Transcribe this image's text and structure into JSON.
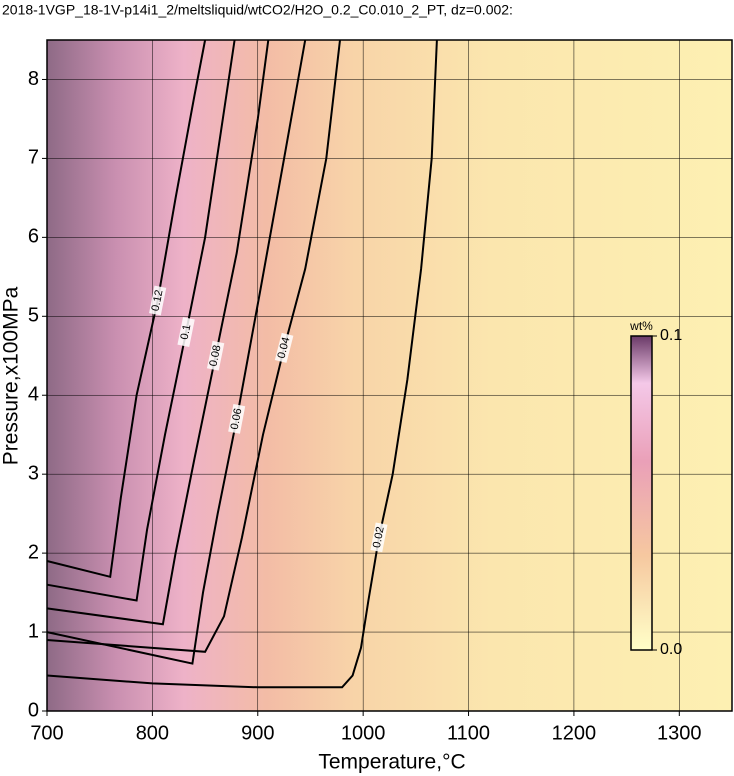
{
  "chart_data": {
    "type": "contour",
    "title": "2018-1VGP_18-1V-p14i1_2/meltsliquid/wtCO2/H2O_0.2_C0.010_2_PT, dz=0.002:",
    "x_label": "Temperature,°C",
    "y_label": "Pressure,x100MPa",
    "xlim": [
      700,
      1350
    ],
    "ylim": [
      0,
      8.5
    ],
    "xticks": [
      700,
      800,
      900,
      1000,
      1100,
      1200,
      1300
    ],
    "yticks": [
      0,
      1,
      2,
      3,
      4,
      5,
      6,
      7,
      8
    ],
    "grid": true,
    "line_color": "#000000",
    "contours": [
      {
        "level": 0.02,
        "x": [
          700,
          800,
          900,
          980,
          990,
          998,
          1005,
          1015,
          1028,
          1042,
          1055,
          1065,
          1070
        ],
        "y": [
          0.45,
          0.35,
          0.3,
          0.3,
          0.45,
          0.8,
          1.4,
          2.2,
          3.0,
          4.2,
          5.6,
          7.0,
          8.5
        ]
      },
      {
        "level": 0.04,
        "x": [
          700,
          850,
          868,
          885,
          905,
          925,
          945,
          965,
          978
        ],
        "y": [
          0.9,
          0.75,
          1.2,
          2.2,
          3.5,
          4.6,
          5.6,
          7.0,
          8.5
        ]
      },
      {
        "level": 0.06,
        "x": [
          700,
          838,
          848,
          862,
          880,
          902,
          925,
          945
        ],
        "y": [
          1.0,
          0.6,
          1.5,
          2.5,
          3.7,
          5.3,
          7.0,
          8.5
        ]
      },
      {
        "level": 0.08,
        "x": [
          700,
          810,
          822,
          840,
          860,
          880,
          900,
          910
        ],
        "y": [
          1.3,
          1.1,
          2.0,
          3.2,
          4.5,
          5.8,
          7.5,
          8.5
        ]
      },
      {
        "level": 0.1,
        "x": [
          700,
          785,
          795,
          812,
          832,
          850,
          868,
          878
        ],
        "y": [
          1.6,
          1.4,
          2.3,
          3.5,
          4.8,
          6.0,
          7.6,
          8.5
        ]
      },
      {
        "level": 0.12,
        "x": [
          700,
          760,
          770,
          785,
          805,
          822,
          840,
          850
        ],
        "y": [
          1.9,
          1.7,
          2.7,
          4.0,
          5.2,
          6.5,
          7.8,
          8.5
        ]
      }
    ],
    "colorbar": {
      "label": "wt%",
      "lim": [
        0,
        0.1
      ],
      "ticks": [
        {
          "value": 0,
          "label": "0.0"
        },
        0.1
      ]
    }
  }
}
